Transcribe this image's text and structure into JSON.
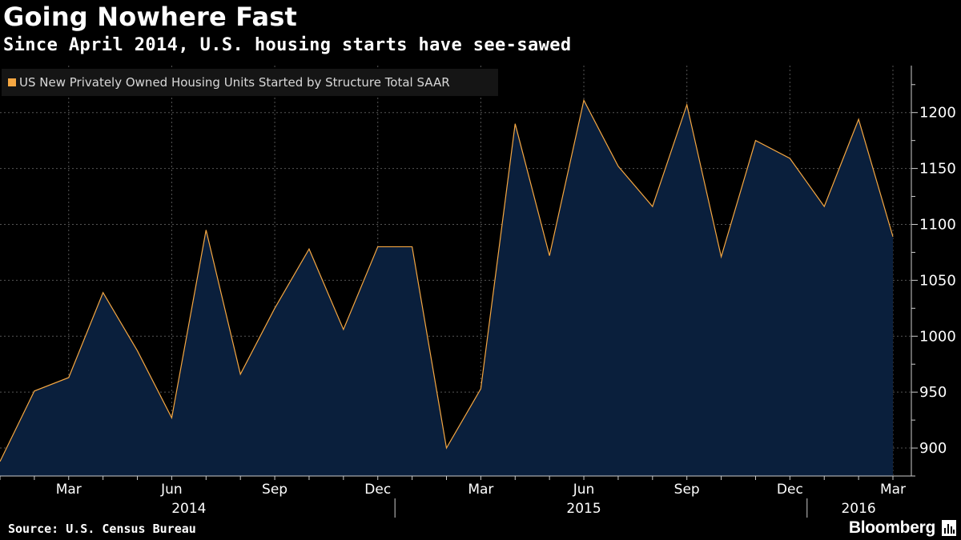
{
  "header": {
    "title": "Going Nowhere Fast",
    "subtitle": "Since April 2014, U.S. housing starts have see-sawed"
  },
  "legend": {
    "label": "US New Privately Owned Housing Units Started by Structure Total SAAR",
    "color": "#f5a742"
  },
  "footer": {
    "source": "Source: U.S. Census Bureau",
    "brand": "Bloomberg"
  },
  "colors": {
    "background": "#000000",
    "area_fill": "#0a1f3c",
    "line": "#f5a742",
    "grid": "#555555",
    "text": "#ffffff"
  },
  "chart_data": {
    "type": "area",
    "x": [
      "2014-01",
      "2014-02",
      "2014-03",
      "2014-04",
      "2014-05",
      "2014-06",
      "2014-07",
      "2014-08",
      "2014-09",
      "2014-10",
      "2014-11",
      "2014-12",
      "2015-01",
      "2015-02",
      "2015-03",
      "2015-04",
      "2015-05",
      "2015-06",
      "2015-07",
      "2015-08",
      "2015-09",
      "2015-10",
      "2015-11",
      "2015-12",
      "2016-01",
      "2016-02",
      "2016-03"
    ],
    "series": [
      {
        "name": "US New Privately Owned Housing Units Started by Structure Total SAAR",
        "values": [
          888,
          951,
          963,
          1039,
          987,
          927,
          1095,
          966,
          1025,
          1078,
          1006,
          1080,
          1080,
          900,
          953,
          1190,
          1072,
          1211,
          1152,
          1116,
          1207,
          1071,
          1175,
          1159,
          1116,
          1194,
          1089
        ]
      }
    ],
    "x_tick_labels": [
      {
        "index": 2,
        "label": "Mar"
      },
      {
        "index": 5,
        "label": "Jun"
      },
      {
        "index": 8,
        "label": "Sep"
      },
      {
        "index": 11,
        "label": "Dec"
      },
      {
        "index": 14,
        "label": "Mar"
      },
      {
        "index": 17,
        "label": "Jun"
      },
      {
        "index": 20,
        "label": "Sep"
      },
      {
        "index": 23,
        "label": "Dec"
      },
      {
        "index": 26,
        "label": "Mar"
      }
    ],
    "year_labels": [
      {
        "label": "2014",
        "center_index": 5.5
      },
      {
        "label": "2015",
        "center_index": 17
      },
      {
        "label": "2016",
        "center_index": 25
      }
    ],
    "year_boundaries": [
      11.5,
      23.5
    ],
    "y_ticks": [
      900,
      950,
      1000,
      1050,
      1100,
      1150,
      1200
    ],
    "ylim": [
      875,
      1242
    ],
    "xlim": [
      0,
      26
    ],
    "y_axis_position": "right",
    "grid": true,
    "legend_position": "top-left"
  }
}
